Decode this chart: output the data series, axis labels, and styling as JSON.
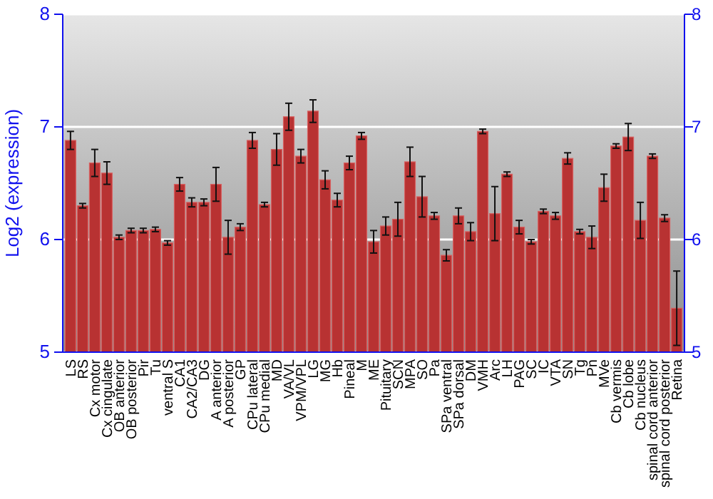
{
  "chart_data": {
    "type": "bar",
    "ylabel": "Log2 (expression)",
    "categories": [
      "LS",
      "RS",
      "Cx motor",
      "Cx cingulate",
      "OB anterior",
      "OB posterior",
      "Pir",
      "Tu",
      "ventral S",
      "CA1",
      "CA2/CA3",
      "DG",
      "A anterior",
      "A posterior",
      "GP",
      "CPu lateral",
      "CPu medial",
      "MD",
      "VA/VL",
      "VPM/VPL",
      "LG",
      "MG",
      "Hb",
      "Pineal",
      "M",
      "ME",
      "Pituitary",
      "SCN",
      "MPA",
      "SO",
      "Pa",
      "SPa ventral",
      "SPa dorsal",
      "DM",
      "VMH",
      "Arc",
      "LH",
      "PAG",
      "SC",
      "IC",
      "VTA",
      "SN",
      "Tg",
      "Pn",
      "MVe",
      "Cb vermis",
      "Cb lobe",
      "Cb nucleus",
      "spinal cord anterior",
      "spinal cord posterior",
      "Retina"
    ],
    "values": [
      6.88,
      6.3,
      6.68,
      6.59,
      6.02,
      6.08,
      6.08,
      6.09,
      5.97,
      6.49,
      6.33,
      6.33,
      6.49,
      6.02,
      6.11,
      6.88,
      6.31,
      6.8,
      7.09,
      6.74,
      7.14,
      6.53,
      6.35,
      6.68,
      6.92,
      5.98,
      6.12,
      6.18,
      6.69,
      6.38,
      6.21,
      5.86,
      6.21,
      6.07,
      6.96,
      6.23,
      6.58,
      6.11,
      5.98,
      6.25,
      6.21,
      6.72,
      6.07,
      6.02,
      6.46,
      6.83,
      6.91,
      6.17,
      6.74,
      6.19,
      5.39
    ],
    "errors": [
      0.08,
      0.02,
      0.12,
      0.1,
      0.02,
      0.02,
      0.02,
      0.02,
      0.02,
      0.06,
      0.04,
      0.03,
      0.15,
      0.15,
      0.03,
      0.07,
      0.02,
      0.14,
      0.12,
      0.06,
      0.1,
      0.08,
      0.06,
      0.06,
      0.03,
      0.1,
      0.08,
      0.15,
      0.13,
      0.18,
      0.03,
      0.05,
      0.07,
      0.08,
      0.02,
      0.24,
      0.02,
      0.06,
      0.02,
      0.02,
      0.03,
      0.05,
      0.02,
      0.1,
      0.12,
      0.02,
      0.12,
      0.16,
      0.02,
      0.03,
      0.33
    ],
    "color": "#b83232",
    "ylim": [
      5,
      8
    ],
    "yticks": [
      5,
      6,
      7,
      8
    ],
    "y2lim": [
      5,
      8
    ],
    "y2ticks": [
      5,
      6,
      7,
      8
    ],
    "grid": "y"
  }
}
